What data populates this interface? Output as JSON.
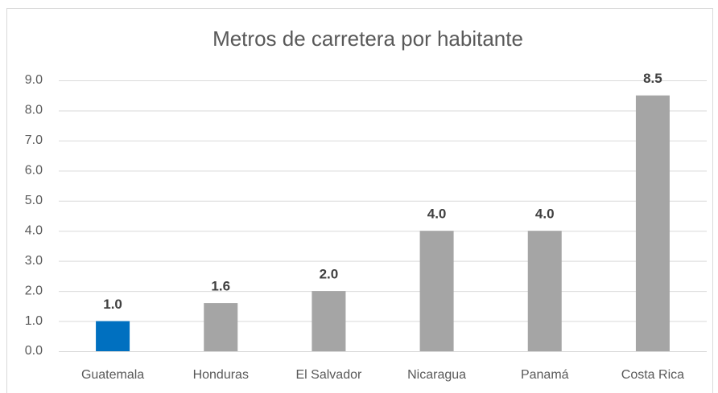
{
  "chart_data": {
    "type": "bar",
    "title": "Metros de carretera por habitante",
    "categories": [
      "Guatemala",
      "Honduras",
      "El Salvador",
      "Nicaragua",
      "Panamá",
      "Costa Rica"
    ],
    "values": [
      1.0,
      1.6,
      2.0,
      4.0,
      4.0,
      8.5
    ],
    "value_labels": [
      "1.0",
      "1.6",
      "2.0",
      "4.0",
      "4.0",
      "8.5"
    ],
    "colors": [
      "#0070c0",
      "#a5a5a5",
      "#a5a5a5",
      "#a5a5a5",
      "#a5a5a5",
      "#a5a5a5"
    ],
    "ylim": [
      0,
      9
    ],
    "yticks": [
      {
        "value": 0,
        "label": "0.0"
      },
      {
        "value": 1,
        "label": "1.0"
      },
      {
        "value": 2,
        "label": "2.0"
      },
      {
        "value": 3,
        "label": "3.0"
      },
      {
        "value": 4,
        "label": "4.0"
      },
      {
        "value": 5,
        "label": "5.0"
      },
      {
        "value": 6,
        "label": "6.0"
      },
      {
        "value": 7,
        "label": "7.0"
      },
      {
        "value": 8,
        "label": "8.0"
      },
      {
        "value": 9,
        "label": "9.0"
      }
    ],
    "grid": true
  }
}
